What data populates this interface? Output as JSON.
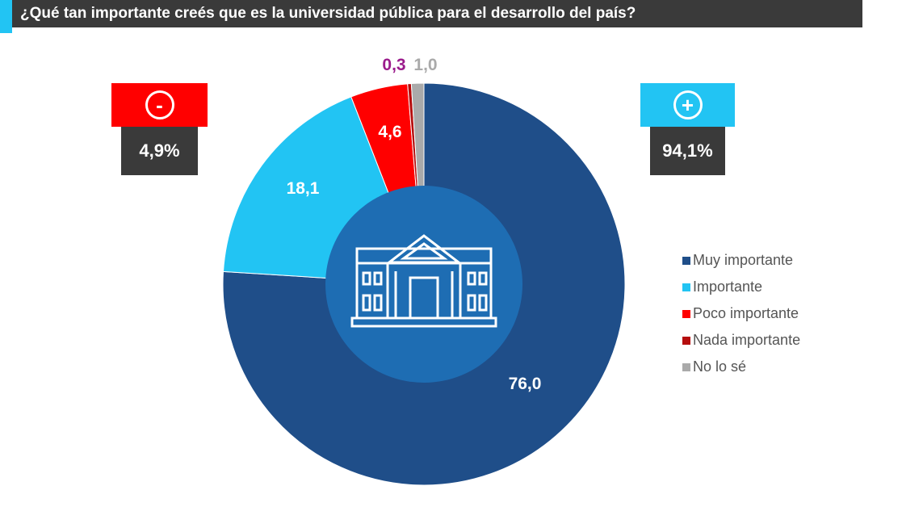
{
  "title": "¿Qué tan importante creés que es la universidad pública para el desarrollo del país?",
  "summary": {
    "negative_sign": "-",
    "negative_value": "4,9%",
    "positive_sign": "+",
    "positive_value": "94,1%"
  },
  "colors": {
    "muy": "#1f4e89",
    "imp": "#22c4f3",
    "poco": "#ff0000",
    "nada": "#b50d0d",
    "nolose": "#aaaaaa",
    "center": "#1e6db3"
  },
  "chart_data": {
    "type": "pie",
    "donut": true,
    "categories": [
      "Muy importante",
      "Importante",
      "Poco importante",
      "Nada importante",
      "No lo sé"
    ],
    "values": [
      76.0,
      18.1,
      4.6,
      0.3,
      1.0
    ],
    "labels": [
      "76,0",
      "18,1",
      "4,6",
      "0,3",
      "1,0"
    ],
    "legend_position": "right"
  }
}
